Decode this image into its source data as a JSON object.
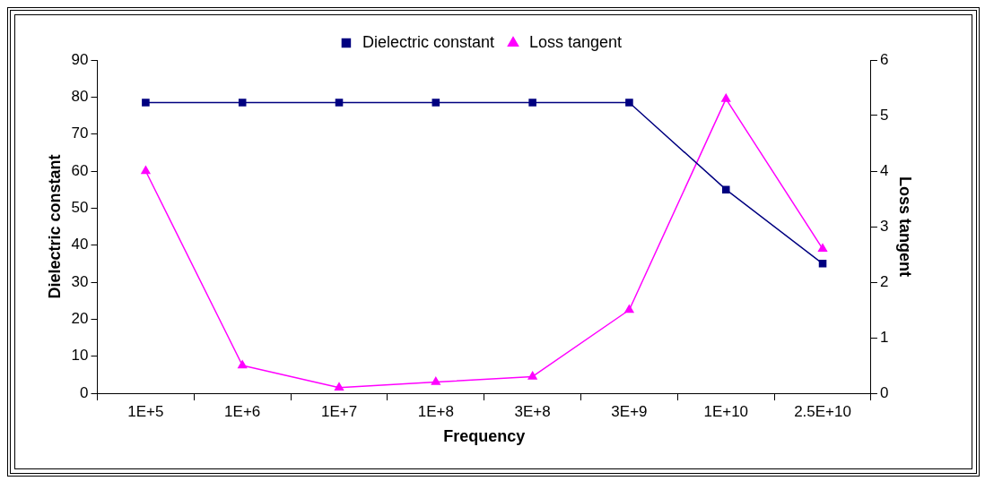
{
  "chart_data": {
    "type": "line",
    "xlabel": "Frequency",
    "ylabel": "Dielectric constant",
    "y2label": "Loss tangent",
    "categories": [
      "1E+5",
      "1E+6",
      "1E+7",
      "1E+8",
      "3E+8",
      "3E+9",
      "1E+10",
      "2.5E+10"
    ],
    "series": [
      {
        "name": "Dielectric constant",
        "color": "#000080",
        "marker": "square",
        "values": [
          78.5,
          78.5,
          78.5,
          78.5,
          78.5,
          78.5,
          55,
          35
        ]
      },
      {
        "name": "Loss tangent",
        "color": "#ff00ff",
        "marker": "triangle",
        "axis": "y2",
        "values": [
          4.0,
          0.5,
          0.1,
          0.2,
          0.3,
          1.5,
          5.3,
          2.6
        ]
      }
    ],
    "ylim": [
      0,
      90
    ],
    "yticks": [
      0,
      10,
      20,
      30,
      40,
      50,
      60,
      70,
      80,
      90
    ],
    "y2lim": [
      0,
      6
    ],
    "y2ticks": [
      0,
      1,
      2,
      3,
      4,
      5,
      6
    ],
    "grid": false,
    "legend": "top"
  }
}
